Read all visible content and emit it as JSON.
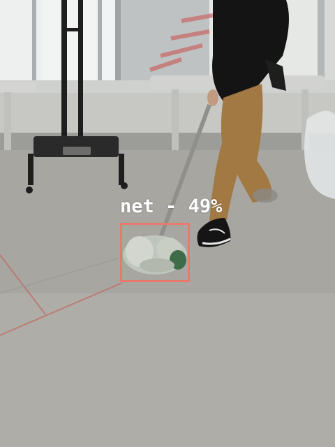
{
  "detection": {
    "label": "net",
    "confidence_text": "49%",
    "separator": " - ",
    "confidence": 0.49,
    "box_color": "#e9786d"
  },
  "colors": {
    "floor": "#a9a8a3",
    "wall": "#d9dad6",
    "pants": "#a27844",
    "jacket": "#151515"
  }
}
